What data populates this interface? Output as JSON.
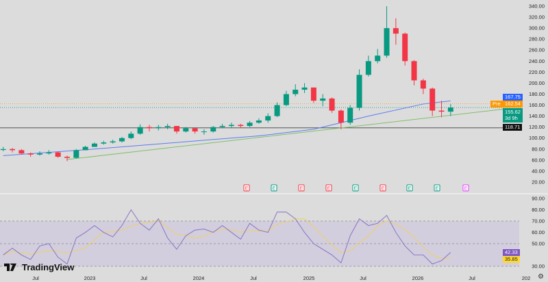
{
  "colors": {
    "up": "#089981",
    "down": "#f23645",
    "ma": "#5b7cf0",
    "trend": "#7fbf6a",
    "rsi": "#8e7cc3",
    "rsi_ma": "#f0d060",
    "pre": "#ff9800",
    "earn_up": "#089981",
    "earn_down": "#f23645",
    "earn_future": "#e040fb"
  },
  "branding": {
    "logo_text": "TradingView"
  },
  "price_axis": {
    "ticks": [
      20,
      40,
      60,
      80,
      100,
      120,
      140,
      160,
      180,
      200,
      220,
      240,
      260,
      280,
      300,
      320,
      340
    ],
    "tick_labels": [
      "20.00",
      "40.00",
      "60.00",
      "80.00",
      "100.00",
      "120.00",
      "140.00",
      "160.00",
      "180.00",
      "200.00",
      "220.00",
      "240.00",
      "260.00",
      "280.00",
      "300.00",
      "320.00",
      "340.00"
    ]
  },
  "tags": {
    "ma": "167.75",
    "pre_label": "Pre",
    "pre": "162.54",
    "last": "155.62",
    "countdown": "3d 9h",
    "level": "118.71",
    "rsi": "42.33",
    "rsi_ma": "35.85"
  },
  "rsi_axis": {
    "ticks": [
      30,
      50,
      60,
      70,
      80,
      90
    ],
    "tick_labels": [
      "30.00",
      "50.00",
      "60.00",
      "70.00",
      "80.00",
      "90.00"
    ],
    "bands": [
      30,
      50,
      70
    ]
  },
  "time_axis": {
    "labels": [
      "Jul",
      "2023",
      "Jul",
      "2024",
      "Jul",
      "2025",
      "Jul",
      "2026",
      "Jul",
      "202"
    ]
  },
  "earnings": [
    {
      "label": "E",
      "type": "down"
    },
    {
      "label": "E",
      "type": "up"
    },
    {
      "label": "E",
      "type": "down"
    },
    {
      "label": "E",
      "type": "down"
    },
    {
      "label": "E",
      "type": "up"
    },
    {
      "label": "E",
      "type": "down"
    },
    {
      "label": "E",
      "type": "up"
    },
    {
      "label": "E",
      "type": "up"
    },
    {
      "label": "E",
      "type": "future"
    }
  ],
  "chart_data": {
    "type": "candlestick",
    "months": [
      "2022-03",
      "2022-04",
      "2022-05",
      "2022-06",
      "2022-07",
      "2022-08",
      "2022-09",
      "2022-10",
      "2022-11",
      "2022-12",
      "2023-01",
      "2023-02",
      "2023-03",
      "2023-04",
      "2023-05",
      "2023-06",
      "2023-07",
      "2023-08",
      "2023-09",
      "2023-10",
      "2023-11",
      "2023-12",
      "2024-01",
      "2024-02",
      "2024-03",
      "2024-04",
      "2024-05",
      "2024-06",
      "2024-07",
      "2024-08",
      "2024-09",
      "2024-10",
      "2024-11",
      "2024-12",
      "2025-01",
      "2025-02",
      "2025-03",
      "2025-04",
      "2025-05",
      "2025-06",
      "2025-07",
      "2025-08",
      "2025-09",
      "2025-10",
      "2025-11",
      "2025-12",
      "2026-01",
      "2026-02",
      "2026-03",
      "2026-04"
    ],
    "close": [
      80,
      78,
      72,
      70,
      72,
      74,
      66,
      64,
      78,
      84,
      90,
      92,
      94,
      100,
      108,
      120,
      118,
      120,
      122,
      112,
      118,
      112,
      112,
      120,
      122,
      124,
      122,
      128,
      132,
      140,
      160,
      180,
      188,
      192,
      168,
      172,
      150,
      128,
      155,
      215,
      240,
      250,
      300,
      290,
      240,
      205,
      190,
      150,
      148,
      155.62
    ],
    "high": [
      84,
      82,
      80,
      74,
      76,
      78,
      75,
      68,
      80,
      86,
      92,
      95,
      97,
      102,
      112,
      125,
      124,
      124,
      126,
      122,
      120,
      118,
      116,
      122,
      126,
      128,
      126,
      131,
      136,
      145,
      165,
      186,
      198,
      200,
      192,
      180,
      174,
      152,
      160,
      225,
      250,
      262,
      340,
      318,
      292,
      242,
      208,
      192,
      168,
      162
    ],
    "low": [
      76,
      74,
      70,
      66,
      68,
      70,
      64,
      58,
      63,
      78,
      84,
      88,
      90,
      92,
      98,
      106,
      112,
      114,
      116,
      108,
      110,
      108,
      106,
      110,
      118,
      118,
      118,
      120,
      126,
      128,
      138,
      158,
      176,
      182,
      164,
      158,
      146,
      116,
      124,
      150,
      212,
      236,
      246,
      270,
      232,
      196,
      180,
      140,
      138,
      140
    ],
    "ma": [
      [
        "2022-03",
        68
      ],
      [
        "2023-01",
        80
      ],
      [
        "2023-07",
        88
      ],
      [
        "2024-01",
        96
      ],
      [
        "2024-07",
        104
      ],
      [
        "2025-01",
        116
      ],
      [
        "2025-07",
        140
      ],
      [
        "2026-01",
        162
      ],
      [
        "2026-04",
        167.75
      ]
    ],
    "trendline": [
      [
        "2022-10",
        61
      ],
      [
        "2026-10",
        153
      ]
    ],
    "levels": {
      "support": 118.71,
      "premarket": 162.54,
      "last": 155.62
    },
    "rsi": [
      40,
      46,
      40,
      36,
      48,
      50,
      38,
      32,
      55,
      60,
      66,
      60,
      56,
      66,
      80,
      68,
      62,
      72,
      55,
      45,
      57,
      62,
      63,
      60,
      66,
      60,
      54,
      68,
      62,
      60,
      78,
      78,
      72,
      60,
      50,
      45,
      40,
      33,
      57,
      72,
      66,
      68,
      75,
      60,
      48,
      40,
      40,
      32,
      35,
      42.33
    ],
    "ylim": [
      10,
      350
    ],
    "rsi_ylim": [
      25,
      95
    ]
  }
}
